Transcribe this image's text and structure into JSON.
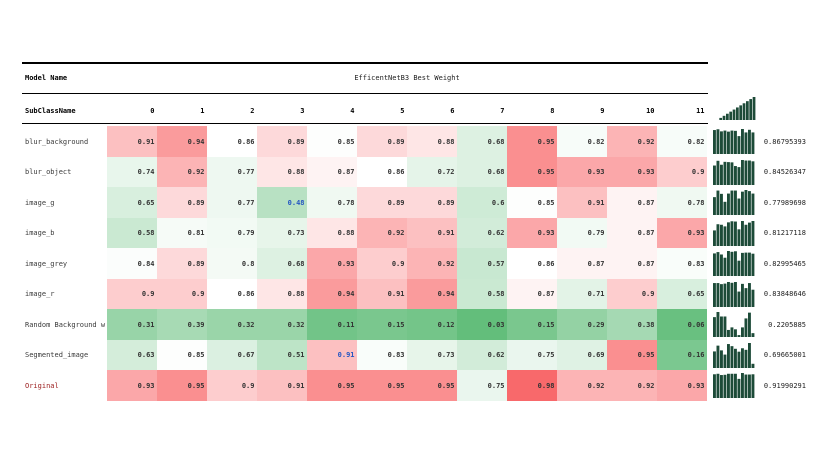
{
  "chart_data": {
    "type": "heatmap",
    "corner_label": "Model Name",
    "column_group_label": "EfficentNetB3 Best Weight",
    "row_header": "SubClassName",
    "columns": [
      "0",
      "1",
      "2",
      "3",
      "4",
      "5",
      "6",
      "7",
      "8",
      "9",
      "10",
      "11"
    ],
    "rows": [
      {
        "name": "blur_background",
        "values": [
          0.91,
          0.94,
          0.86,
          0.89,
          0.85,
          0.89,
          0.88,
          0.68,
          0.95,
          0.82,
          0.92,
          0.82
        ],
        "score": "0.86795393"
      },
      {
        "name": "blur_object",
        "values": [
          0.74,
          0.92,
          0.77,
          0.88,
          0.87,
          0.86,
          0.72,
          0.68,
          0.95,
          0.93,
          0.93,
          0.9
        ],
        "score": "0.84526347"
      },
      {
        "name": "image_g",
        "values": [
          0.65,
          0.89,
          0.77,
          0.48,
          0.78,
          0.89,
          0.89,
          0.6,
          0.85,
          0.91,
          0.87,
          0.78
        ],
        "score": "0.77989698",
        "highlighted_columns": [
          "3"
        ]
      },
      {
        "name": "image_b",
        "values": [
          0.58,
          0.81,
          0.79,
          0.73,
          0.88,
          0.92,
          0.91,
          0.62,
          0.93,
          0.79,
          0.87,
          0.93
        ],
        "score": "0.81217118"
      },
      {
        "name": "image_grey",
        "values": [
          0.84,
          0.89,
          0.8,
          0.68,
          0.93,
          0.9,
          0.92,
          0.57,
          0.86,
          0.87,
          0.87,
          0.83
        ],
        "score": "0.82995465"
      },
      {
        "name": "image_r",
        "values": [
          0.9,
          0.9,
          0.86,
          0.88,
          0.94,
          0.91,
          0.94,
          0.58,
          0.87,
          0.71,
          0.9,
          0.65
        ],
        "score": "0.83848646"
      },
      {
        "name": "Random Background w",
        "values": [
          0.31,
          0.39,
          0.32,
          0.32,
          0.11,
          0.15,
          0.12,
          0.03,
          0.15,
          0.29,
          0.38,
          0.06
        ],
        "score": "0.2205885"
      },
      {
        "name": "Segmented_image",
        "values": [
          0.63,
          0.85,
          0.67,
          0.51,
          0.91,
          0.83,
          0.73,
          0.62,
          0.75,
          0.69,
          0.95,
          0.16
        ],
        "score": "0.69665001",
        "highlighted_columns": [
          "4"
        ]
      },
      {
        "name": "Original",
        "values": [
          0.93,
          0.95,
          0.9,
          0.91,
          0.95,
          0.95,
          0.95,
          0.75,
          0.98,
          0.92,
          0.92,
          0.93
        ],
        "score": "0.91990291",
        "label_color": "#9B1C1C"
      }
    ],
    "color_scale": {
      "low": "#63BE7B",
      "mid": "#FFFFFF",
      "high": "#F8696B"
    },
    "highlight_color": "#2456C2",
    "sparkline_color": "#1D4B38"
  }
}
